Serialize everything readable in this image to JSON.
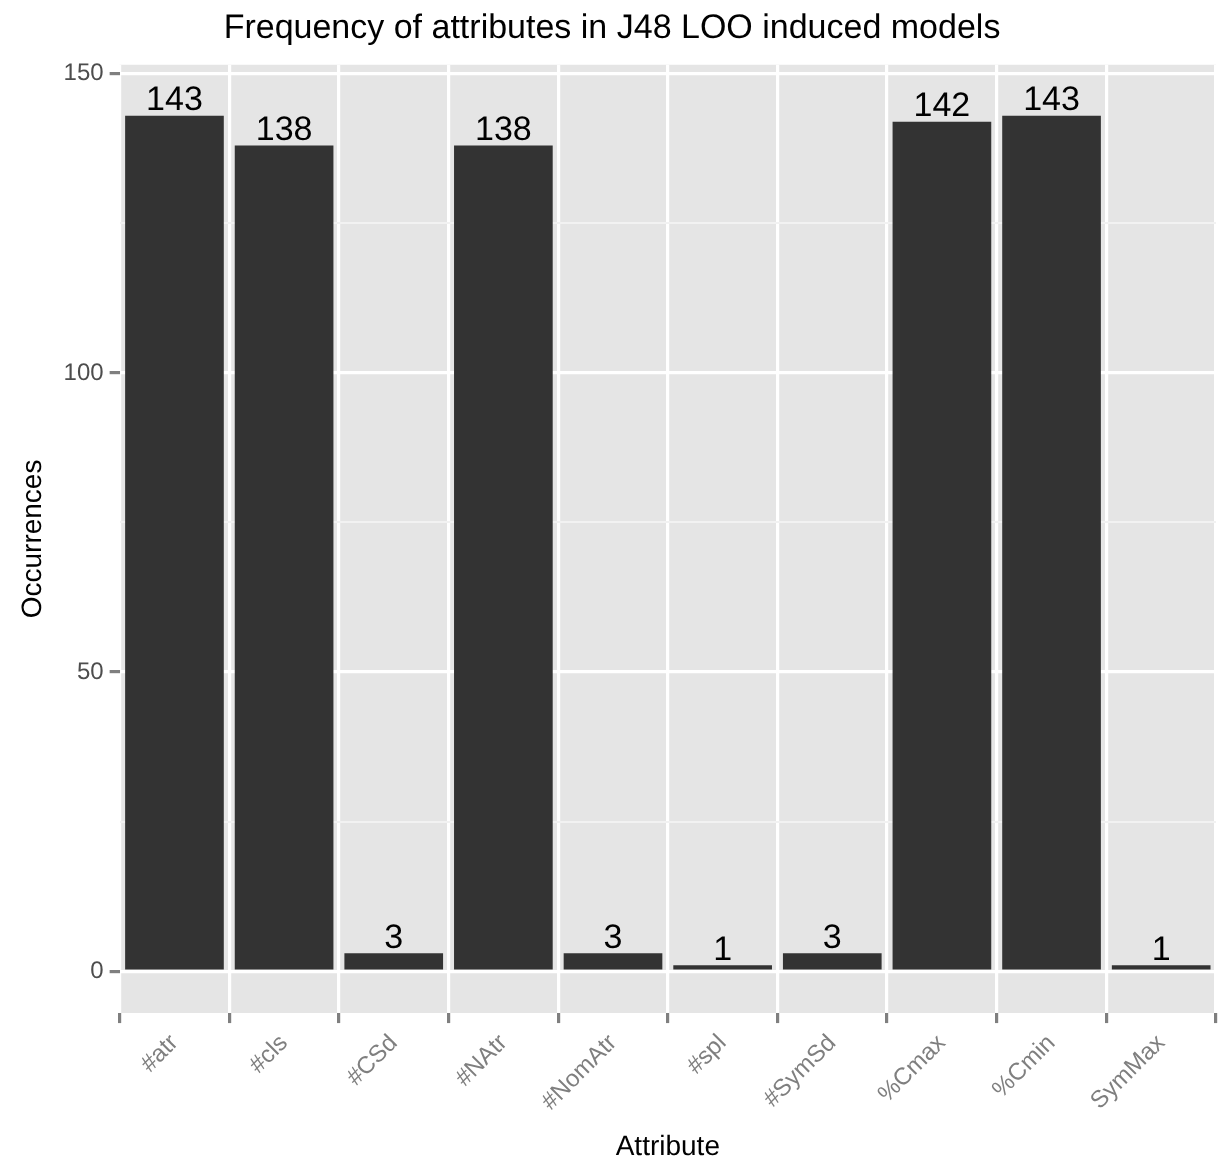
{
  "chart_data": {
    "type": "bar",
    "title": "Frequency of attributes in J48 LOO induced models",
    "xlabel": "Attribute",
    "ylabel": "Occurrences",
    "categories": [
      "#atr",
      "#cls",
      "#CSd",
      "#NAtr",
      "#NomAtr",
      "#spl",
      "#SymSd",
      "%Cmax",
      "%Cmin",
      "SymMax"
    ],
    "values": [
      143,
      138,
      3,
      138,
      3,
      1,
      3,
      142,
      143,
      1
    ],
    "color": "#333333",
    "ylim": [
      -7,
      151.5
    ],
    "yticks": [
      0,
      {
        "value": 25,
        "label": null
      },
      50,
      {
        "value": 75,
        "label": null
      },
      100,
      {
        "value": 125,
        "label": null
      },
      150
    ],
    "grid": true,
    "legend": false,
    "data_labels": true
  }
}
